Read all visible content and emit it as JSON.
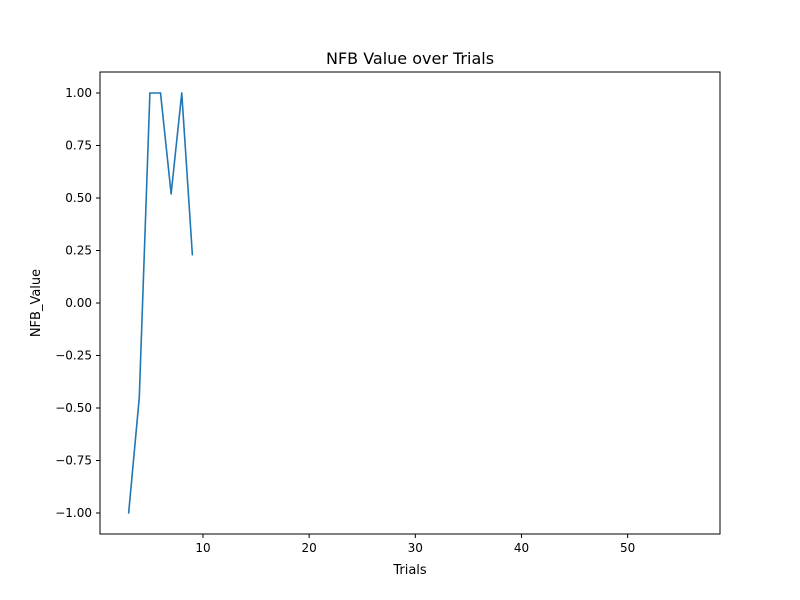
{
  "chart_data": {
    "type": "line",
    "title": "NFB Value over Trials",
    "xlabel": "Trials",
    "ylabel": "NFB_Value",
    "xlim": [
      0.3,
      58.7
    ],
    "ylim": [
      -1.1,
      1.1
    ],
    "xticks": [
      10,
      20,
      30,
      40,
      50
    ],
    "yticks": [
      -1.0,
      -0.75,
      -0.5,
      -0.25,
      0.0,
      0.25,
      0.5,
      0.75,
      1.0
    ],
    "xtick_labels": [
      "10",
      "20",
      "30",
      "40",
      50
    ],
    "ytick_labels": [
      "−1.00",
      "−0.75",
      "−0.50",
      "−0.25",
      "0.00",
      "0.25",
      "0.50",
      "0.75",
      "1.00"
    ],
    "grid": false,
    "series": [
      {
        "color": "#1f77b4",
        "x": [
          3,
          4,
          5,
          6,
          7,
          8,
          9
        ],
        "y": [
          -1.0,
          -0.45,
          1.0,
          1.0,
          0.52,
          1.0,
          0.23
        ]
      }
    ]
  }
}
